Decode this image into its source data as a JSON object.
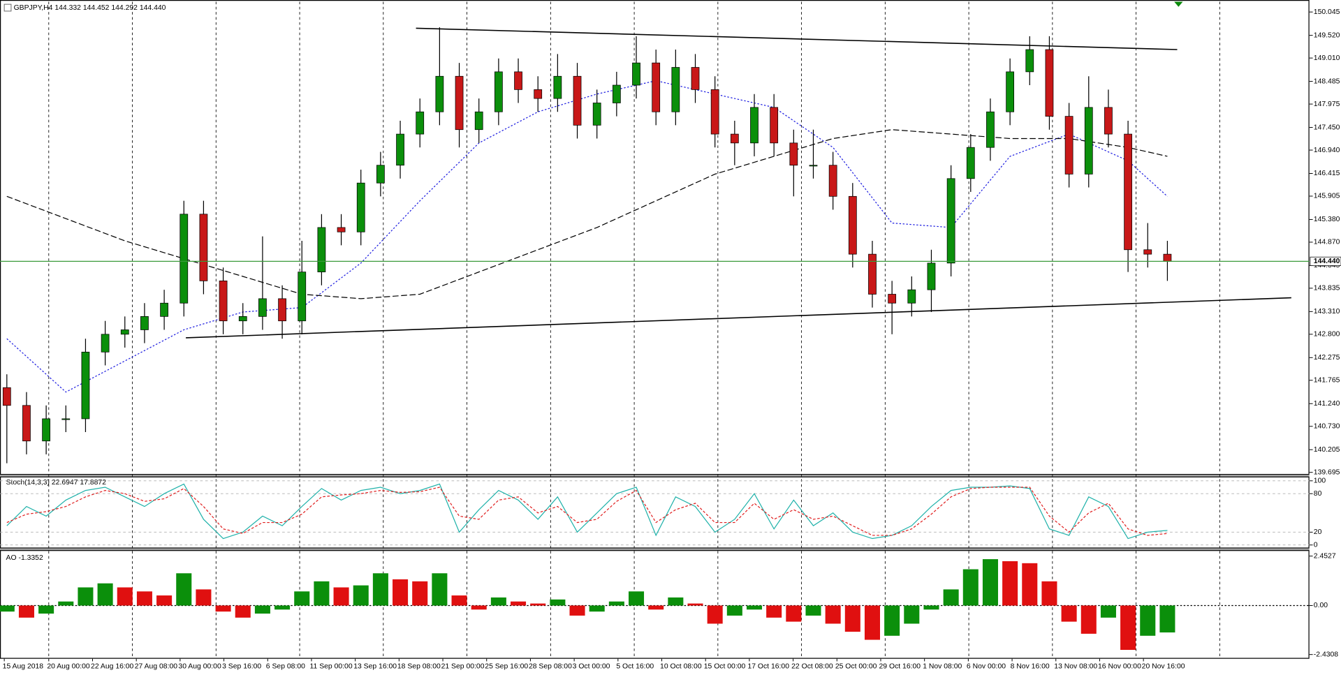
{
  "chart_data": [
    {
      "type": "candlestick",
      "title": "GBPJPY,H4  144.332 144.452 144.292 144.440",
      "open": [
        141.6,
        141.2,
        140.4,
        140.9,
        140.9,
        142.4,
        142.8,
        142.9,
        143.2,
        143.5,
        145.5,
        144.0,
        143.1,
        143.2,
        143.6,
        143.1,
        144.2,
        145.2,
        145.1,
        146.2,
        146.6,
        147.3,
        147.8,
        148.6,
        147.4,
        147.8,
        148.7,
        148.3,
        148.1,
        148.6,
        147.5,
        148.0,
        148.4,
        148.9,
        147.8,
        148.8,
        148.3,
        147.3,
        147.1,
        147.9,
        147.1,
        146.6,
        146.6,
        145.9,
        144.6,
        143.7,
        143.5,
        143.8,
        144.4,
        146.3,
        147.0,
        147.8,
        148.7,
        149.2,
        147.7,
        146.4,
        147.9,
        147.3,
        144.7,
        144.6
      ],
      "high": [
        141.9,
        141.5,
        141.2,
        141.2,
        142.7,
        143.1,
        143.2,
        143.5,
        143.8,
        145.8,
        145.8,
        144.3,
        143.5,
        145.0,
        143.9,
        144.9,
        145.5,
        145.5,
        146.5,
        146.9,
        147.6,
        148.1,
        149.7,
        148.9,
        148.1,
        149.0,
        149.0,
        148.6,
        149.1,
        148.9,
        148.3,
        148.7,
        149.5,
        149.2,
        149.2,
        149.1,
        148.6,
        147.6,
        148.2,
        148.2,
        147.4,
        147.4,
        146.9,
        146.2,
        144.9,
        144.0,
        144.1,
        144.7,
        146.6,
        147.3,
        148.1,
        149.0,
        149.5,
        149.5,
        148.0,
        148.6,
        148.3,
        147.6,
        145.3,
        144.9
      ],
      "low": [
        139.9,
        140.1,
        140.1,
        140.6,
        140.6,
        142.1,
        142.5,
        142.6,
        142.9,
        143.2,
        143.7,
        142.8,
        142.8,
        142.9,
        142.7,
        142.8,
        143.9,
        144.8,
        144.8,
        145.9,
        146.3,
        147.0,
        147.5,
        147.0,
        147.1,
        147.5,
        148.0,
        147.8,
        147.8,
        147.2,
        147.2,
        147.7,
        148.1,
        147.5,
        147.5,
        148.0,
        147.0,
        146.6,
        146.8,
        146.8,
        145.9,
        146.3,
        145.6,
        144.3,
        143.4,
        142.8,
        143.2,
        143.3,
        144.1,
        146.0,
        146.7,
        147.5,
        148.4,
        147.4,
        146.1,
        146.1,
        147.0,
        144.2,
        144.3,
        144.0
      ],
      "close": [
        141.2,
        140.4,
        140.9,
        140.9,
        142.4,
        142.8,
        142.9,
        143.2,
        143.5,
        145.5,
        144.0,
        143.1,
        143.2,
        143.6,
        143.1,
        144.2,
        145.2,
        145.1,
        146.2,
        146.6,
        147.3,
        147.8,
        148.6,
        147.4,
        147.8,
        148.7,
        148.3,
        148.1,
        148.6,
        147.5,
        148.0,
        148.4,
        148.9,
        147.8,
        148.8,
        148.3,
        147.3,
        147.1,
        147.9,
        147.1,
        146.6,
        146.6,
        145.9,
        144.6,
        143.7,
        143.5,
        143.8,
        144.4,
        146.3,
        147.0,
        147.8,
        148.7,
        149.2,
        147.7,
        146.4,
        147.9,
        147.3,
        144.7,
        144.6,
        144.44
      ],
      "up_color": "#0b8f0b",
      "down_color": "#c81818",
      "wick_color": "#000000",
      "ylim": [
        139.64,
        150.276
      ],
      "yticks": [
        150.045,
        {
          "value": 149.52,
          "label": "149.520"
        },
        {
          "value": 149.01,
          "label": "149.010"
        },
        148.485,
        147.975,
        {
          "value": 147.45,
          "label": "147.450"
        },
        {
          "value": 146.94,
          "label": "146.940"
        },
        146.415,
        145.905,
        {
          "value": 145.38,
          "label": "145.380"
        },
        {
          "value": 144.87,
          "label": "144.870"
        },
        144.345,
        143.835,
        {
          "value": 143.31,
          "label": "143.310"
        },
        {
          "value": 142.8,
          "label": "142.800"
        },
        142.275,
        141.765,
        {
          "value": 141.24,
          "label": "141.240"
        },
        {
          "value": 140.73,
          "label": "140.730"
        },
        140.205,
        139.695
      ],
      "moving_averages": [
        {
          "color": "#1d1de0",
          "style": "dotted",
          "x": [
            0,
            3,
            6,
            9,
            12,
            15,
            18,
            21,
            24,
            27,
            30,
            33,
            36,
            39,
            42,
            45,
            48,
            51,
            54,
            57,
            59
          ],
          "values": [
            142.7,
            141.5,
            142.2,
            142.9,
            143.3,
            143.4,
            144.4,
            145.8,
            147.1,
            147.8,
            148.2,
            148.5,
            148.2,
            147.9,
            147.0,
            145.3,
            145.2,
            146.8,
            147.3,
            146.7,
            145.9
          ]
        },
        {
          "color": "#000000",
          "style": "dashed",
          "x": [
            0,
            3,
            6,
            9,
            12,
            15,
            18,
            21,
            24,
            27,
            30,
            33,
            36,
            39,
            42,
            45,
            48,
            51,
            54,
            57,
            59
          ],
          "values": [
            145.9,
            145.4,
            144.9,
            144.5,
            144.1,
            143.7,
            143.6,
            143.7,
            144.2,
            144.7,
            145.2,
            145.8,
            146.4,
            146.8,
            147.2,
            147.4,
            147.3,
            147.2,
            147.2,
            147.0,
            146.8
          ]
        }
      ],
      "trendlines": [
        {
          "color": "#000000",
          "x": [
            20.8,
            59.5
          ],
          "values": [
            149.68,
            149.2
          ]
        },
        {
          "color": "#000000",
          "x": [
            9.1,
            65.3
          ],
          "values": [
            142.72,
            143.62
          ]
        }
      ],
      "price_line": {
        "value": 144.44,
        "label": "144.440",
        "color": "#3a9a3a"
      },
      "x_labels": [
        "15 Aug 2018",
        "20 Aug 00:00",
        "22 Aug 16:00",
        "27 Aug 08:00",
        "30 Aug 00:00",
        "3 Sep 16:00",
        "6 Sep 08:00",
        "11 Sep 00:00",
        "13 Sep 16:00",
        "18 Sep 08:00",
        "21 Sep 00:00",
        "25 Sep 16:00",
        "28 Sep 08:00",
        "3 Oct 00:00",
        "5 Oct 16:00",
        "10 Oct 08:00",
        "15 Oct 00:00",
        "17 Oct 16:00",
        "22 Oct 08:00",
        "25 Oct 00:00",
        "29 Oct 16:00",
        "1 Nov 08:00",
        "6 Nov 00:00",
        "8 Nov 16:00",
        "13 Nov 08:00",
        "16 Nov 00:00",
        "20 Nov 16:00"
      ]
    },
    {
      "type": "line",
      "title": "Stoch(14,3,3) 22.6947 17.8872",
      "series": [
        {
          "color": "#20b2aa",
          "style": "solid",
          "values": [
            30,
            60,
            45,
            70,
            85,
            90,
            75,
            60,
            80,
            95,
            40,
            10,
            20,
            45,
            30,
            60,
            88,
            70,
            85,
            90,
            80,
            85,
            95,
            20,
            55,
            85,
            70,
            40,
            75,
            20,
            50,
            80,
            90,
            15,
            75,
            60,
            20,
            40,
            80,
            25,
            70,
            30,
            50,
            20,
            10,
            15,
            30,
            60,
            85,
            90,
            90,
            92,
            88,
            25,
            15,
            75,
            60,
            10,
            20,
            22.6947
          ]
        },
        {
          "color": "#e02020",
          "style": "dashed",
          "values": [
            35,
            48,
            52,
            60,
            75,
            85,
            80,
            68,
            72,
            88,
            60,
            25,
            18,
            35,
            35,
            48,
            75,
            78,
            80,
            85,
            82,
            83,
            90,
            45,
            40,
            70,
            75,
            50,
            60,
            35,
            40,
            68,
            85,
            35,
            55,
            65,
            35,
            35,
            65,
            40,
            55,
            40,
            45,
            30,
            15,
            15,
            25,
            48,
            75,
            88,
            90,
            90,
            90,
            45,
            20,
            50,
            65,
            25,
            15,
            17.8872
          ]
        }
      ],
      "ylim": [
        -5.3,
        106.7
      ],
      "yticks": [
        100,
        80,
        20,
        0
      ]
    },
    {
      "type": "bar",
      "title": "AO -1.3352",
      "values": [
        -0.3,
        -0.6,
        -0.4,
        0.2,
        0.9,
        1.1,
        0.9,
        0.7,
        0.5,
        1.6,
        0.8,
        -0.3,
        -0.6,
        -0.4,
        -0.2,
        0.7,
        1.2,
        0.9,
        1.0,
        1.6,
        1.3,
        1.2,
        1.6,
        0.5,
        -0.2,
        0.4,
        0.2,
        0.1,
        0.3,
        -0.5,
        -0.3,
        0.2,
        0.7,
        -0.2,
        0.4,
        0.1,
        -0.9,
        -0.5,
        -0.2,
        -0.6,
        -0.8,
        -0.5,
        -0.9,
        -1.3,
        -1.7,
        -1.5,
        -0.9,
        -0.2,
        0.8,
        1.8,
        2.3,
        2.2,
        2.1,
        1.2,
        -0.8,
        -1.4,
        -0.6,
        -2.2,
        -1.5,
        -1.3352
      ],
      "up_color": "#0b8f0b",
      "down_color": "#e01010",
      "ylim": [
        -2.64,
        2.75
      ],
      "yticks": [
        2.4527,
        {
          "value": 0,
          "label": "0.00"
        },
        -2.4308
      ]
    }
  ]
}
